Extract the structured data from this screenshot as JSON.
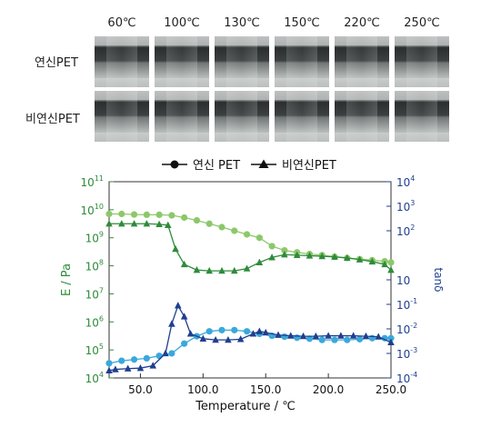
{
  "photo_panel": {
    "temperatures": [
      "60℃",
      "100℃",
      "130℃",
      "150℃",
      "220℃",
      "250℃"
    ],
    "row_labels": [
      "연신PET",
      "비연신PET"
    ]
  },
  "chart_data": {
    "type": "line",
    "legend": [
      "연신 PET",
      "비연신PET"
    ],
    "legend_placement": "top-center",
    "xlabel": "Temperature / ℃",
    "ylabel_left": "E / Pa",
    "ylabel_right": "tanδ",
    "xlim": [
      25,
      250
    ],
    "x_ticks": [
      "50.0",
      "100.0",
      "150.0",
      "200.0",
      "250.0"
    ],
    "ylim_left_log10": [
      4,
      11
    ],
    "ylim_right_log10": [
      -4,
      4
    ],
    "y_ticks_left": [
      {
        "base": "10",
        "exp": "11"
      },
      {
        "base": "10",
        "exp": "10"
      },
      {
        "base": "10",
        "exp": "9"
      },
      {
        "base": "10",
        "exp": "8"
      },
      {
        "base": "10",
        "exp": "7"
      },
      {
        "base": "10",
        "exp": "6"
      },
      {
        "base": "10",
        "exp": "5"
      },
      {
        "base": "10",
        "exp": "4"
      }
    ],
    "y_ticks_right": [
      {
        "base": "10",
        "exp": "4"
      },
      {
        "base": "10",
        "exp": "3"
      },
      {
        "base": "10",
        "exp": "2"
      },
      {
        "base": "10",
        "exp": ""
      },
      {
        "base": "10",
        "exp": "-1"
      },
      {
        "base": "10",
        "exp": "-2"
      },
      {
        "base": "10",
        "exp": "-3"
      },
      {
        "base": "10",
        "exp": "-4"
      }
    ],
    "colors": {
      "E_stretched": "#8cc86a",
      "E_unstretched": "#2e8b3a",
      "tan_stretched": "#3aa8dc",
      "tan_unstretched": "#1f3f8f",
      "left_axis": "#2e8b3a",
      "right_axis": "#1f3f8f"
    },
    "series": [
      {
        "name": "연신 PET",
        "quantity": "E",
        "axis": "left",
        "marker": "circle",
        "x": [
          25,
          35,
          45,
          55,
          65,
          75,
          85,
          95,
          105,
          115,
          125,
          135,
          145,
          155,
          165,
          175,
          185,
          195,
          205,
          215,
          225,
          235,
          245,
          250
        ],
        "log10_y": [
          9.85,
          9.85,
          9.83,
          9.82,
          9.82,
          9.8,
          9.72,
          9.62,
          9.5,
          9.38,
          9.25,
          9.12,
          9.0,
          8.7,
          8.55,
          8.48,
          8.42,
          8.38,
          8.32,
          8.28,
          8.24,
          8.2,
          8.16,
          8.12
        ]
      },
      {
        "name": "비연신PET",
        "quantity": "E",
        "axis": "left",
        "marker": "triangle",
        "x": [
          25,
          35,
          45,
          55,
          65,
          72,
          78,
          85,
          95,
          105,
          115,
          125,
          135,
          145,
          155,
          165,
          175,
          185,
          195,
          205,
          215,
          225,
          235,
          245,
          250
        ],
        "log10_y": [
          9.5,
          9.5,
          9.5,
          9.5,
          9.48,
          9.45,
          8.6,
          8.05,
          7.85,
          7.82,
          7.82,
          7.82,
          7.9,
          8.12,
          8.3,
          8.4,
          8.38,
          8.36,
          8.34,
          8.32,
          8.28,
          8.22,
          8.15,
          8.05,
          7.85
        ]
      },
      {
        "name": "연신 PET",
        "quantity": "tanδ",
        "axis": "right",
        "marker": "circle",
        "x": [
          25,
          35,
          45,
          55,
          65,
          75,
          85,
          95,
          105,
          115,
          125,
          135,
          145,
          155,
          165,
          175,
          185,
          195,
          205,
          215,
          225,
          235,
          245,
          250
        ],
        "log10_y": [
          -3.4,
          -3.3,
          -3.25,
          -3.2,
          -3.1,
          -3.0,
          -2.6,
          -2.3,
          -2.1,
          -2.05,
          -2.05,
          -2.1,
          -2.2,
          -2.28,
          -2.32,
          -2.36,
          -2.4,
          -2.45,
          -2.45,
          -2.45,
          -2.42,
          -2.38,
          -2.38,
          -2.38
        ]
      },
      {
        "name": "비연신PET",
        "quantity": "tanδ",
        "axis": "right",
        "marker": "triangle",
        "x": [
          25,
          30,
          40,
          50,
          60,
          70,
          75,
          80,
          85,
          90,
          100,
          110,
          120,
          130,
          140,
          145,
          150,
          160,
          170,
          180,
          190,
          200,
          210,
          220,
          230,
          240,
          250
        ],
        "log10_y": [
          -3.7,
          -3.65,
          -3.62,
          -3.6,
          -3.5,
          -3.0,
          -1.8,
          -1.05,
          -1.5,
          -2.2,
          -2.4,
          -2.45,
          -2.45,
          -2.42,
          -2.2,
          -2.1,
          -2.15,
          -2.25,
          -2.28,
          -2.3,
          -2.3,
          -2.28,
          -2.28,
          -2.28,
          -2.3,
          -2.32,
          -2.55
        ]
      }
    ]
  }
}
